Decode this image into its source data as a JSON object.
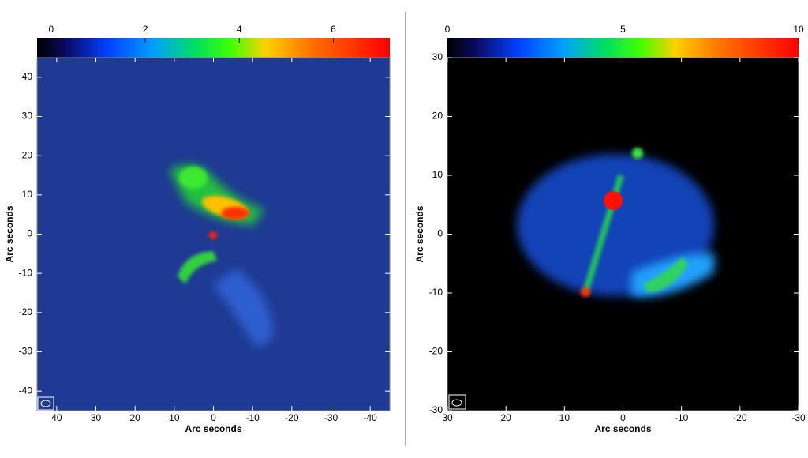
{
  "chart_data": [
    {
      "type": "image",
      "xlabel": "Arc seconds",
      "ylabel": "Arc seconds",
      "xlim": [
        45,
        -45
      ],
      "ylim": [
        -45,
        45
      ],
      "xticks": [
        40,
        30,
        20,
        10,
        0,
        -10,
        -20,
        -30,
        -40
      ],
      "yticks": [
        -40,
        -30,
        -20,
        -10,
        0,
        10,
        20,
        30,
        40
      ],
      "clim": [
        -0.3,
        7.2
      ],
      "cticks": [
        0,
        2,
        4,
        6
      ]
    },
    {
      "type": "image",
      "xlabel": "Arc seconds",
      "ylabel": "Arc seconds",
      "xlim": [
        30,
        -30
      ],
      "ylim": [
        -30,
        30
      ],
      "xticks": [
        30,
        20,
        10,
        0,
        -10,
        -20,
        -30
      ],
      "yticks": [
        -30,
        -20,
        -10,
        0,
        10,
        20,
        30
      ],
      "clim": [
        0,
        10
      ],
      "cticks": [
        0,
        5,
        10
      ]
    }
  ]
}
